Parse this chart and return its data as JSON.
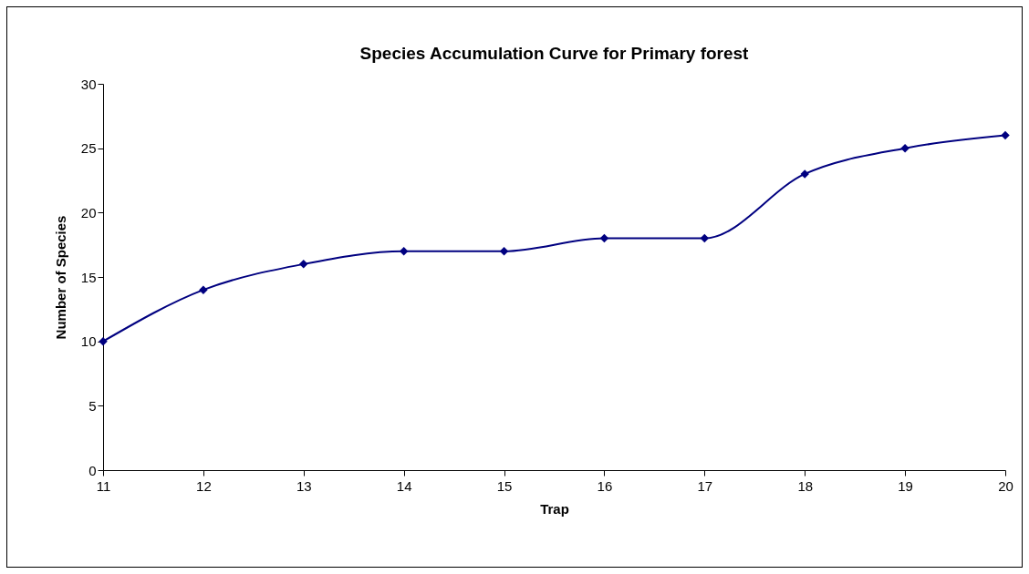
{
  "chart_data": {
    "type": "line",
    "title": "Species Accumulation Curve for Primary forest",
    "xlabel": "Trap",
    "ylabel": "Number of Species",
    "x": [
      11,
      12,
      13,
      14,
      15,
      16,
      17,
      18,
      19,
      20
    ],
    "series": [
      {
        "color": "#000080",
        "values": [
          10,
          14,
          16,
          17,
          17,
          18,
          18,
          23,
          25,
          26
        ]
      }
    ],
    "xlim": [
      11,
      20
    ],
    "xticks": [
      11,
      12,
      13,
      14,
      15,
      16,
      17,
      18,
      19,
      20
    ],
    "ylim": [
      0,
      30
    ],
    "yticks": [
      0,
      5,
      10,
      15,
      20,
      25,
      30
    ],
    "grid": false,
    "marker": "diamond",
    "line_style": "solid"
  }
}
